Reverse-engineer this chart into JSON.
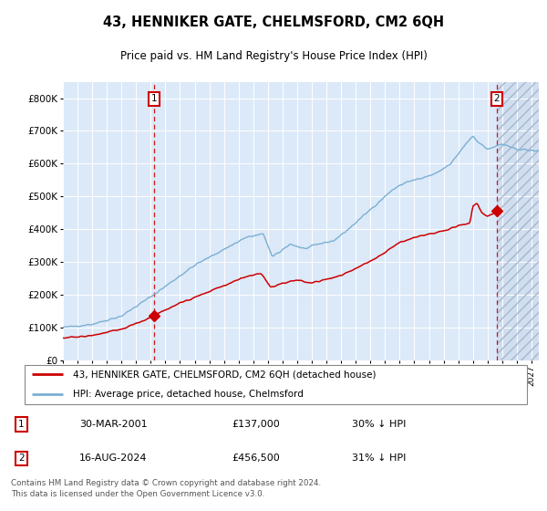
{
  "title": "43, HENNIKER GATE, CHELMSFORD, CM2 6QH",
  "subtitle": "Price paid vs. HM Land Registry's House Price Index (HPI)",
  "sale1_date": "30-MAR-2001",
  "sale1_price": 137000,
  "sale1_hpi_diff": "30% ↓ HPI",
  "sale2_date": "16-AUG-2024",
  "sale2_price": 456500,
  "sale2_hpi_diff": "31% ↓ HPI",
  "legend_red": "43, HENNIKER GATE, CHELMSFORD, CM2 6QH (detached house)",
  "legend_blue": "HPI: Average price, detached house, Chelmsford",
  "footer": "Contains HM Land Registry data © Crown copyright and database right 2024.\nThis data is licensed under the Open Government Licence v3.0.",
  "ylabel_ticks": [
    "£0",
    "£100K",
    "£200K",
    "£300K",
    "£400K",
    "£500K",
    "£600K",
    "£700K",
    "£800K"
  ],
  "ylabel_values": [
    0,
    100000,
    200000,
    300000,
    400000,
    500000,
    600000,
    700000,
    800000
  ],
  "ylim": [
    0,
    850000
  ],
  "background_color": "#dce9f8",
  "red_color": "#cc0000",
  "blue_color": "#7bafd4",
  "grid_color": "#ffffff",
  "sale1_x": 2001.24,
  "sale2_x": 2024.62,
  "xlim_start": 1995,
  "xlim_end": 2027.5
}
